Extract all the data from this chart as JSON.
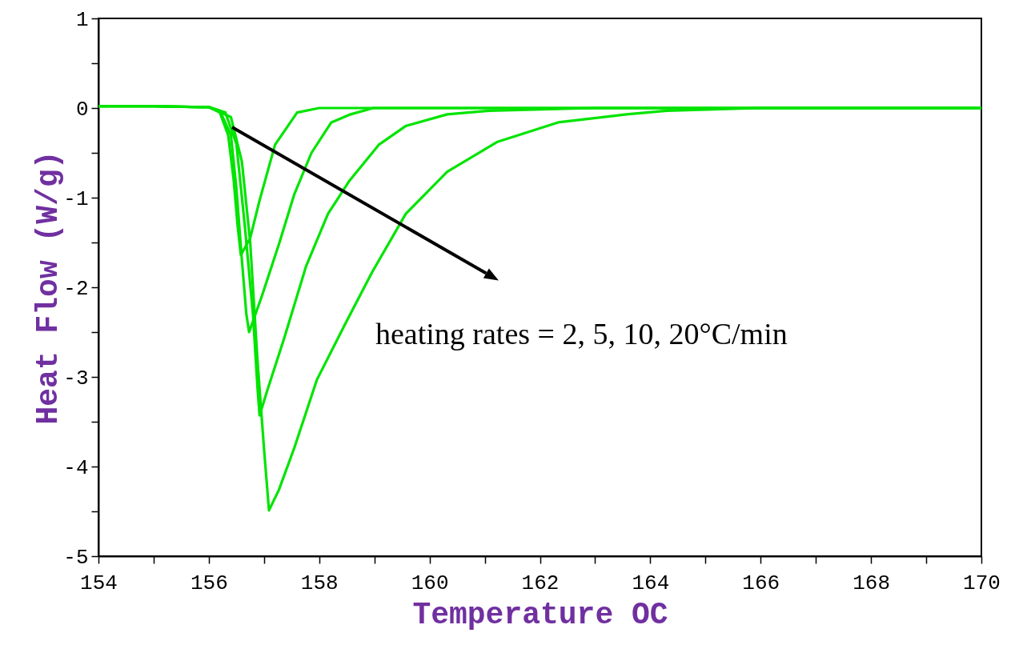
{
  "chart_data": {
    "type": "line",
    "xlabel": "Temperature OC",
    "ylabel": "Heat Flow (W/g)",
    "annotations": [
      "heating rates = 2, 5, 10, 20°C/min"
    ],
    "xlim": [
      154,
      170
    ],
    "ylim": [
      -5,
      1
    ],
    "xticks": [
      154,
      {
        "value": 155,
        "label": null
      },
      156,
      {
        "value": 157,
        "label": null
      },
      158,
      {
        "value": 159,
        "label": null
      },
      160,
      {
        "value": 161,
        "label": null
      },
      162,
      {
        "value": 163,
        "label": null
      },
      164,
      {
        "value": 165,
        "label": null
      },
      166,
      {
        "value": 167,
        "label": null
      },
      168,
      {
        "value": 169,
        "label": null
      },
      170
    ],
    "yticks": [
      -5,
      {
        "value": -4.5,
        "label": null
      },
      -4,
      {
        "value": -3.5,
        "label": null
      },
      -3,
      {
        "value": -2.5,
        "label": null
      },
      -2,
      {
        "value": -1.5,
        "label": null
      },
      -1,
      {
        "value": -0.5,
        "label": null
      },
      0,
      {
        "value": 0.5,
        "label": null
      },
      1
    ],
    "grid": false,
    "marker": "none",
    "line_style": "solid",
    "series": [
      {
        "color": "#00e400",
        "x": [
          154,
          155,
          156,
          156.2,
          156.35,
          156.45,
          156.52,
          156.58,
          156.75,
          156.92,
          157.2,
          157.6,
          158.0,
          159,
          162,
          166,
          170
        ],
        "values": [
          0.02,
          0.02,
          0.01,
          -0.05,
          -0.3,
          -0.8,
          -1.3,
          -1.64,
          -1.45,
          -1.03,
          -0.41,
          -0.05,
          0,
          0,
          0,
          0,
          0
        ]
      },
      {
        "color": "#00e400",
        "x": [
          154,
          155,
          156,
          156.2,
          156.4,
          156.5,
          156.6,
          156.68,
          156.73,
          156.96,
          157.27,
          157.55,
          157.86,
          158.22,
          158.57,
          158.98,
          162,
          166,
          170
        ],
        "values": [
          0.02,
          0.02,
          0.01,
          -0.03,
          -0.3,
          -0.9,
          -1.7,
          -2.3,
          -2.5,
          -2.1,
          -1.52,
          -0.96,
          -0.5,
          -0.16,
          -0.07,
          0,
          0,
          0,
          0
        ]
      },
      {
        "color": "#00e400",
        "x": [
          154,
          155,
          156,
          156.3,
          156.5,
          156.65,
          156.8,
          156.88,
          156.92,
          157.06,
          157.37,
          157.76,
          158.16,
          158.55,
          159.08,
          159.57,
          160.32,
          161.08,
          163,
          166,
          170
        ],
        "values": [
          0.02,
          0.02,
          0.01,
          -0.05,
          -0.4,
          -1.3,
          -2.3,
          -3.1,
          -3.43,
          -3.15,
          -2.56,
          -1.77,
          -1.18,
          -0.81,
          -0.41,
          -0.2,
          -0.07,
          -0.03,
          0,
          0,
          0
        ]
      },
      {
        "color": "#00e400",
        "x": [
          154,
          155,
          156,
          156.4,
          156.6,
          156.75,
          156.88,
          157.0,
          157.09,
          157.27,
          157.55,
          157.96,
          158.47,
          158.96,
          159.57,
          160.32,
          161.22,
          162.33,
          163.57,
          164.3,
          166,
          170
        ],
        "values": [
          0.02,
          0.02,
          0.01,
          -0.1,
          -0.6,
          -1.5,
          -2.8,
          -3.8,
          -4.49,
          -4.26,
          -3.79,
          -3.03,
          -2.41,
          -1.83,
          -1.18,
          -0.71,
          -0.38,
          -0.16,
          -0.07,
          -0.03,
          0,
          0
        ]
      }
    ]
  }
}
